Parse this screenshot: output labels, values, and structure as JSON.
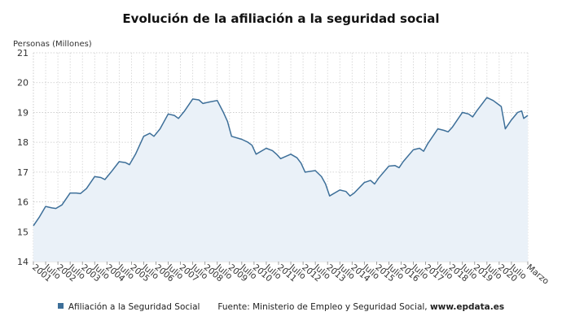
{
  "chart_data": {
    "type": "line",
    "title": "Evolución de la afiliación a la seguridad social",
    "ylabel": "Personas (Millones)",
    "xlabel": "",
    "ylim": [
      14,
      21
    ],
    "yticks": [
      14,
      15,
      16,
      17,
      18,
      19,
      20,
      21
    ],
    "grid": true,
    "line_color": "#3d6f99",
    "fill_color": "#eaf1f8",
    "x_range": [
      "2001-01",
      "2021-03"
    ],
    "x_tick_labels": [
      {
        "label": "2001",
        "date": "2001-01"
      },
      {
        "label": "Julio",
        "date": "2001-07"
      },
      {
        "label": "2002",
        "date": "2002-01"
      },
      {
        "label": "Julio",
        "date": "2002-07"
      },
      {
        "label": "2003",
        "date": "2003-01"
      },
      {
        "label": "Julio",
        "date": "2003-07"
      },
      {
        "label": "2004",
        "date": "2004-01"
      },
      {
        "label": "Julio",
        "date": "2004-07"
      },
      {
        "label": "2005",
        "date": "2005-01"
      },
      {
        "label": "Julio",
        "date": "2005-07"
      },
      {
        "label": "2006",
        "date": "2006-01"
      },
      {
        "label": "Julio",
        "date": "2006-07"
      },
      {
        "label": "2007",
        "date": "2007-01"
      },
      {
        "label": "Julio",
        "date": "2007-07"
      },
      {
        "label": "2008",
        "date": "2008-01"
      },
      {
        "label": "Julio",
        "date": "2008-07"
      },
      {
        "label": "2009",
        "date": "2009-01"
      },
      {
        "label": "Julio",
        "date": "2009-07"
      },
      {
        "label": "2010",
        "date": "2010-01"
      },
      {
        "label": "Julio",
        "date": "2010-07"
      },
      {
        "label": "2011",
        "date": "2011-01"
      },
      {
        "label": "Julio",
        "date": "2011-07"
      },
      {
        "label": "2012",
        "date": "2012-01"
      },
      {
        "label": "Julio",
        "date": "2012-07"
      },
      {
        "label": "2013",
        "date": "2013-01"
      },
      {
        "label": "Julio",
        "date": "2013-07"
      },
      {
        "label": "2014",
        "date": "2014-01"
      },
      {
        "label": "Julio",
        "date": "2014-07"
      },
      {
        "label": "2015",
        "date": "2015-01"
      },
      {
        "label": "Julio",
        "date": "2015-07"
      },
      {
        "label": "2016",
        "date": "2016-01"
      },
      {
        "label": "Julio",
        "date": "2016-07"
      },
      {
        "label": "2017",
        "date": "2017-01"
      },
      {
        "label": "Julio",
        "date": "2017-07"
      },
      {
        "label": "2018",
        "date": "2018-01"
      },
      {
        "label": "Julio",
        "date": "2018-07"
      },
      {
        "label": "2019",
        "date": "2019-01"
      },
      {
        "label": "Julio",
        "date": "2019-07"
      },
      {
        "label": "2020",
        "date": "2020-01"
      },
      {
        "label": "Julio",
        "date": "2020-07"
      },
      {
        "label": "Marzo",
        "date": "2021-03"
      }
    ],
    "series": [
      {
        "name": "Afiliación a la Seguridad Social",
        "points": [
          [
            "2001-01",
            15.2
          ],
          [
            "2001-04",
            15.5
          ],
          [
            "2001-07",
            15.85
          ],
          [
            "2001-10",
            15.8
          ],
          [
            "2001-12",
            15.78
          ],
          [
            "2002-03",
            15.9
          ],
          [
            "2002-07",
            16.3
          ],
          [
            "2002-10",
            16.3
          ],
          [
            "2002-12",
            16.28
          ],
          [
            "2003-03",
            16.45
          ],
          [
            "2003-07",
            16.85
          ],
          [
            "2003-10",
            16.82
          ],
          [
            "2003-12",
            16.75
          ],
          [
            "2004-03",
            17.0
          ],
          [
            "2004-07",
            17.35
          ],
          [
            "2004-10",
            17.32
          ],
          [
            "2004-12",
            17.25
          ],
          [
            "2005-03",
            17.6
          ],
          [
            "2005-07",
            18.2
          ],
          [
            "2005-10",
            18.3
          ],
          [
            "2005-12",
            18.2
          ],
          [
            "2006-03",
            18.45
          ],
          [
            "2006-07",
            18.95
          ],
          [
            "2006-10",
            18.9
          ],
          [
            "2006-12",
            18.8
          ],
          [
            "2007-03",
            19.05
          ],
          [
            "2007-07",
            19.45
          ],
          [
            "2007-10",
            19.42
          ],
          [
            "2007-12",
            19.3
          ],
          [
            "2008-03",
            19.35
          ],
          [
            "2008-07",
            19.4
          ],
          [
            "2008-10",
            19.0
          ],
          [
            "2008-12",
            18.7
          ],
          [
            "2009-02",
            18.2
          ],
          [
            "2009-07",
            18.1
          ],
          [
            "2009-10",
            18.0
          ],
          [
            "2009-12",
            17.9
          ],
          [
            "2010-02",
            17.6
          ],
          [
            "2010-07",
            17.8
          ],
          [
            "2010-10",
            17.72
          ],
          [
            "2010-12",
            17.6
          ],
          [
            "2011-02",
            17.45
          ],
          [
            "2011-07",
            17.6
          ],
          [
            "2011-10",
            17.48
          ],
          [
            "2011-12",
            17.3
          ],
          [
            "2012-02",
            17.0
          ],
          [
            "2012-07",
            17.05
          ],
          [
            "2012-10",
            16.85
          ],
          [
            "2012-12",
            16.6
          ],
          [
            "2013-02",
            16.2
          ],
          [
            "2013-07",
            16.4
          ],
          [
            "2013-10",
            16.35
          ],
          [
            "2013-12",
            16.2
          ],
          [
            "2014-02",
            16.3
          ],
          [
            "2014-07",
            16.65
          ],
          [
            "2014-10",
            16.72
          ],
          [
            "2014-12",
            16.6
          ],
          [
            "2015-02",
            16.8
          ],
          [
            "2015-07",
            17.2
          ],
          [
            "2015-10",
            17.22
          ],
          [
            "2015-12",
            17.15
          ],
          [
            "2016-02",
            17.35
          ],
          [
            "2016-07",
            17.75
          ],
          [
            "2016-10",
            17.8
          ],
          [
            "2016-12",
            17.7
          ],
          [
            "2017-02",
            17.95
          ],
          [
            "2017-07",
            18.45
          ],
          [
            "2017-10",
            18.4
          ],
          [
            "2017-12",
            18.35
          ],
          [
            "2018-02",
            18.5
          ],
          [
            "2018-07",
            19.0
          ],
          [
            "2018-10",
            18.95
          ],
          [
            "2018-12",
            18.85
          ],
          [
            "2019-02",
            19.05
          ],
          [
            "2019-07",
            19.5
          ],
          [
            "2019-10",
            19.4
          ],
          [
            "2019-12",
            19.3
          ],
          [
            "2020-02",
            19.2
          ],
          [
            "2020-04",
            18.45
          ],
          [
            "2020-07",
            18.75
          ],
          [
            "2020-10",
            19.0
          ],
          [
            "2020-12",
            19.05
          ],
          [
            "2021-01",
            18.8
          ],
          [
            "2021-02",
            18.85
          ],
          [
            "2021-03",
            18.9
          ]
        ]
      }
    ]
  },
  "legend": {
    "series_label": "Afiliación a la Seguridad Social"
  },
  "footer": {
    "source_label": "Fuente: Ministerio de Empleo y Seguridad Social,",
    "source_url": "www.epdata.es"
  }
}
